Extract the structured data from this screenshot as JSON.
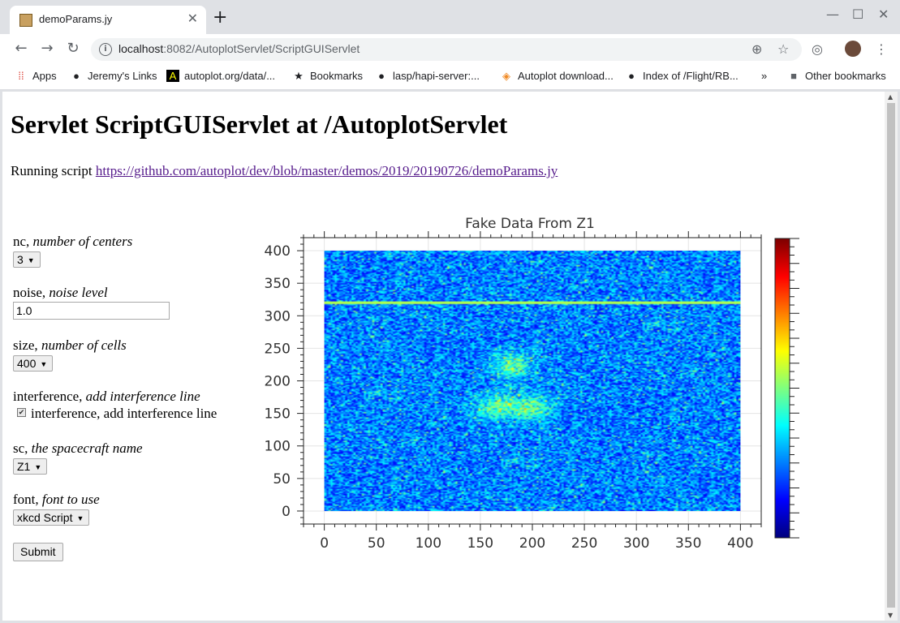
{
  "browser": {
    "tab_title": "demoParams.jy",
    "url_host": "localhost",
    "url_rest": ":8082/AutoplotServlet/ScriptGUIServlet",
    "bookmarks": [
      "Apps",
      "Jeremy's Links",
      "autoplot.org/data/...",
      "Bookmarks",
      "lasp/hapi-server:...",
      "Autoplot download...",
      "Index of /Flight/RB...",
      "Other bookmarks"
    ],
    "icons": {
      "back": "arrow-left-icon",
      "forward": "arrow-right-icon",
      "reload": "reload-icon"
    }
  },
  "page": {
    "heading": "Servlet ScriptGUIServlet at /AutoplotServlet",
    "running_prefix": "Running script ",
    "script_link": "https://github.com/autoplot/dev/blob/master/demos/2019/20190726/demoParams.jy"
  },
  "form": {
    "nc": {
      "name": "nc, ",
      "desc": "number of centers",
      "value": "3"
    },
    "noise": {
      "name": "noise, ",
      "desc": "noise level",
      "value": "1.0"
    },
    "size": {
      "name": "size, ",
      "desc": "number of cells",
      "value": "400"
    },
    "interference": {
      "name": "interference, ",
      "desc": "add interference line",
      "checkbox_label": "interference, add interference line",
      "checked": true
    },
    "sc": {
      "name": "sc, ",
      "desc": "the spacecraft name",
      "value": "Z1"
    },
    "font": {
      "name": "font, ",
      "desc": "font to use",
      "value": "xkcd Script"
    },
    "submit_label": "Submit"
  },
  "chart_data": {
    "type": "heatmap",
    "title": "Fake Data From Z1",
    "xlim": [
      -20,
      420
    ],
    "ylim": [
      -20,
      420
    ],
    "x_ticks": [
      0,
      50,
      100,
      150,
      200,
      250,
      300,
      350,
      400
    ],
    "y_ticks": [
      0,
      50,
      100,
      150,
      200,
      250,
      300,
      350,
      400
    ],
    "grid": true,
    "colorbar": "rainbow",
    "interference_line_y": 320,
    "centers": [
      [
        180,
        225
      ],
      [
        165,
        160
      ],
      [
        200,
        160
      ]
    ],
    "data_extent": {
      "x": [
        0,
        400
      ],
      "y": [
        0,
        400
      ]
    }
  }
}
